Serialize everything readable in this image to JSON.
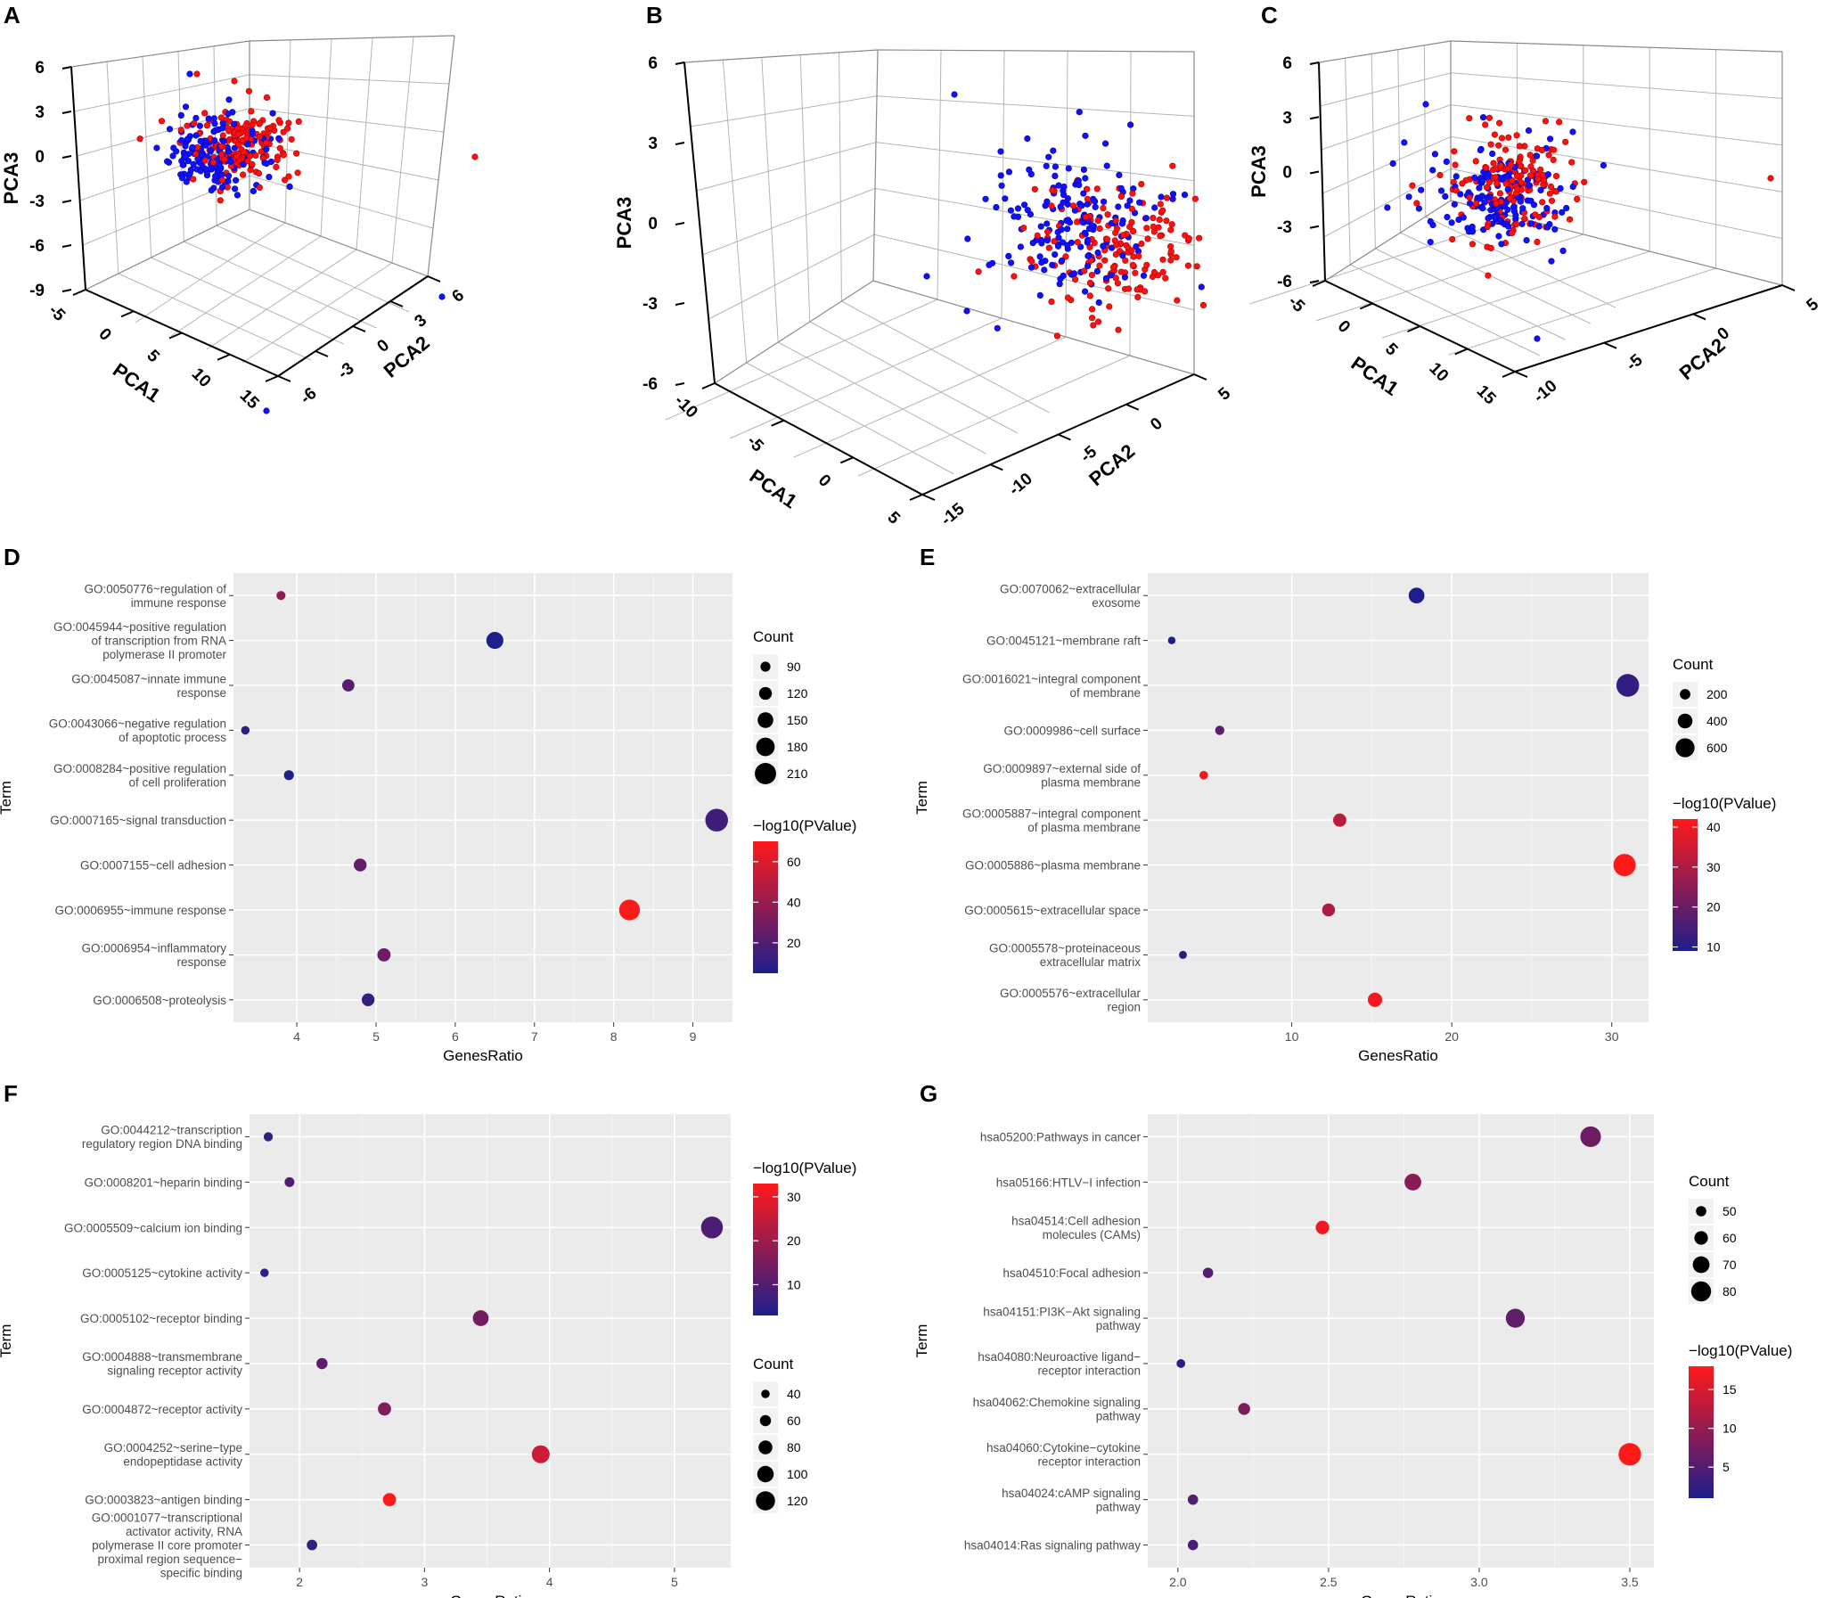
{
  "colors": {
    "low": "#1e1e8c",
    "high": "#ff1a1a",
    "panel_bg": "#ebebeb",
    "grid": "#ffffff",
    "pca_a": "#1010ff",
    "pca_b": "#ff1010"
  },
  "pca_panels": [
    {
      "letter": "A",
      "xlabel": "PCA1",
      "ylabel": "PCA2",
      "zlabel": "PCA3",
      "z_ticks": [
        "6",
        "3",
        "0",
        "-3",
        "-6",
        "-9"
      ],
      "x_ticks": [
        "-5",
        "0",
        "5",
        "10",
        "15"
      ],
      "y_ticks": [
        "-6",
        "-3",
        "0",
        "3",
        "6"
      ]
    },
    {
      "letter": "B",
      "xlabel": "PCA1",
      "ylabel": "PCA2",
      "zlabel": "PCA3",
      "z_ticks": [
        "6",
        "3",
        "0",
        "-3",
        "-6"
      ],
      "x_ticks": [
        "-10",
        "-5",
        "0",
        "5"
      ],
      "y_ticks": [
        "-15",
        "-10",
        "-5",
        "0",
        "5"
      ]
    },
    {
      "letter": "C",
      "xlabel": "PCA1",
      "ylabel": "PCA2",
      "zlabel": "PCA3",
      "z_ticks": [
        "6",
        "3",
        "0",
        "-3",
        "-6"
      ],
      "x_ticks": [
        "-5",
        "0",
        "5",
        "10",
        "15"
      ],
      "y_ticks": [
        "-10",
        "-5",
        "0",
        "5"
      ]
    }
  ],
  "chart_data": [
    {
      "letter": "D",
      "type": "scatter",
      "xlabel": "GenesRatio",
      "ylabel": "Term",
      "xlim": [
        3.2,
        9.5
      ],
      "xticks": [
        4,
        5,
        6,
        7,
        8,
        9
      ],
      "terms": [
        {
          "label": [
            "GO:0050776~regulation of",
            "immune response"
          ],
          "ratio": 3.8,
          "count": 80,
          "p": 38
        },
        {
          "label": [
            "GO:0045944~positive regulation",
            "of transcription from RNA",
            "polymerase II promoter"
          ],
          "ratio": 6.5,
          "count": 165,
          "p": 5
        },
        {
          "label": [
            "GO:0045087~innate immune",
            "response"
          ],
          "ratio": 4.65,
          "count": 115,
          "p": 22
        },
        {
          "label": [
            "GO:0043066~negative regulation",
            "of apoptotic process"
          ],
          "ratio": 3.35,
          "count": 75,
          "p": 8
        },
        {
          "label": [
            "GO:0008284~positive regulation",
            "of cell proliferation"
          ],
          "ratio": 3.9,
          "count": 90,
          "p": 5
        },
        {
          "label": [
            "GO:0007165~signal transduction"
          ],
          "ratio": 9.3,
          "count": 225,
          "p": 15
        },
        {
          "label": [
            "GO:0007155~cell adhesion"
          ],
          "ratio": 4.8,
          "count": 120,
          "p": 25
        },
        {
          "label": [
            "GO:0006955~immune response"
          ],
          "ratio": 8.2,
          "count": 205,
          "p": 70
        },
        {
          "label": [
            "GO:0006954~inflammatory",
            "response"
          ],
          "ratio": 5.1,
          "count": 125,
          "p": 28
        },
        {
          "label": [
            "GO:0006508~proteolysis"
          ],
          "ratio": 4.9,
          "count": 120,
          "p": 12
        }
      ],
      "legend_order": "count_first",
      "count_title": "Count",
      "count_vals": [
        90,
        120,
        150,
        180,
        210
      ],
      "count_range": [
        60,
        230
      ],
      "p_title": "−log10(PValue)",
      "p_ticks": [
        20,
        40,
        60
      ],
      "p_range": [
        5,
        70
      ]
    },
    {
      "letter": "E",
      "type": "scatter",
      "xlabel": "GenesRatio",
      "ylabel": "Term",
      "xlim": [
        1.0,
        32.3
      ],
      "xticks": [
        10,
        20,
        30
      ],
      "terms": [
        {
          "label": [
            "GO:0070062~extracellular",
            "exosome"
          ],
          "ratio": 17.8,
          "count": 450,
          "p": 6
        },
        {
          "label": [
            "GO:0045121~membrane raft"
          ],
          "ratio": 2.5,
          "count": 60,
          "p": 5
        },
        {
          "label": [
            "GO:0016021~integral component",
            "of membrane"
          ],
          "ratio": 31.0,
          "count": 780,
          "p": 12
        },
        {
          "label": [
            "GO:0009986~cell surface"
          ],
          "ratio": 5.5,
          "count": 140,
          "p": 18
        },
        {
          "label": [
            "GO:0009897~external side of",
            "plasma membrane"
          ],
          "ratio": 4.5,
          "count": 110,
          "p": 40
        },
        {
          "label": [
            "GO:0005887~integral component",
            "of plasma membrane"
          ],
          "ratio": 13.0,
          "count": 330,
          "p": 32
        },
        {
          "label": [
            "GO:0005886~plasma membrane"
          ],
          "ratio": 30.8,
          "count": 760,
          "p": 42
        },
        {
          "label": [
            "GO:0005615~extracellular space"
          ],
          "ratio": 12.3,
          "count": 310,
          "p": 30
        },
        {
          "label": [
            "GO:0005578~proteinaceous",
            "extracellular matrix"
          ],
          "ratio": 3.2,
          "count": 80,
          "p": 6
        },
        {
          "label": [
            "GO:0005576~extracellular",
            "region"
          ],
          "ratio": 15.2,
          "count": 380,
          "p": 40
        }
      ],
      "legend_order": "count_first",
      "count_title": "Count",
      "count_vals": [
        200,
        400,
        600
      ],
      "count_range": [
        40,
        800
      ],
      "p_title": "−log10(PValue)",
      "p_ticks": [
        10,
        20,
        30,
        40
      ],
      "p_range": [
        9,
        42
      ]
    },
    {
      "letter": "F",
      "type": "scatter",
      "xlabel": "GenesRatio",
      "ylabel": "Term",
      "xlim": [
        1.6,
        5.45
      ],
      "xticks": [
        2,
        3,
        4,
        5
      ],
      "terms": [
        {
          "label": [
            "GO:0044212~transcription",
            "regulatory region DNA binding"
          ],
          "ratio": 1.75,
          "count": 45,
          "p": 6
        },
        {
          "label": [
            "GO:0008201~heparin binding"
          ],
          "ratio": 1.92,
          "count": 50,
          "p": 10
        },
        {
          "label": [
            "GO:0005509~calcium ion binding"
          ],
          "ratio": 5.3,
          "count": 140,
          "p": 9
        },
        {
          "label": [
            "GO:0005125~cytokine activity"
          ],
          "ratio": 1.72,
          "count": 40,
          "p": 5
        },
        {
          "label": [
            "GO:0005102~receptor binding"
          ],
          "ratio": 3.45,
          "count": 95,
          "p": 14
        },
        {
          "label": [
            "GO:0004888~transmembrane",
            "signaling receptor activity"
          ],
          "ratio": 2.18,
          "count": 60,
          "p": 11
        },
        {
          "label": [
            "GO:0004872~receptor activity"
          ],
          "ratio": 2.68,
          "count": 75,
          "p": 16
        },
        {
          "label": [
            "GO:0004252~serine−type",
            "endopeptidase activity"
          ],
          "ratio": 3.93,
          "count": 110,
          "p": 26
        },
        {
          "label": [
            "GO:0003823~antigen binding"
          ],
          "ratio": 2.72,
          "count": 75,
          "p": 33
        },
        {
          "label": [
            "GO:0001077~transcriptional",
            "activator activity, RNA",
            "polymerase II core promoter",
            "proximal region sequence−",
            "specific binding"
          ],
          "ratio": 2.1,
          "count": 55,
          "p": 6
        }
      ],
      "legend_order": "p_first",
      "count_title": "Count",
      "count_vals": [
        40,
        60,
        80,
        100,
        120
      ],
      "count_range": [
        30,
        150
      ],
      "p_title": "−log10(PValue)",
      "p_ticks": [
        10,
        20,
        30
      ],
      "p_range": [
        3,
        33
      ]
    },
    {
      "letter": "G",
      "type": "scatter",
      "xlabel": "GenesRatio",
      "ylabel": "Term",
      "xlim": [
        1.9,
        3.58
      ],
      "xticks": [
        2.0,
        2.5,
        3.0,
        3.5
      ],
      "terms": [
        {
          "label": [
            "hsa05200:Pathways in cancer"
          ],
          "ratio": 3.37,
          "count": 82,
          "p": 7
        },
        {
          "label": [
            "hsa05166:HTLV−I infection"
          ],
          "ratio": 2.78,
          "count": 70,
          "p": 9
        },
        {
          "label": [
            "hsa04514:Cell adhesion",
            "molecules (CAMs)"
          ],
          "ratio": 2.48,
          "count": 60,
          "p": 17
        },
        {
          "label": [
            "hsa04510:Focal adhesion"
          ],
          "ratio": 2.1,
          "count": 50,
          "p": 5
        },
        {
          "label": [
            "hsa04151:PI3K−Akt signaling",
            "pathway"
          ],
          "ratio": 3.12,
          "count": 77,
          "p": 6
        },
        {
          "label": [
            "hsa04080:Neuroactive ligand−",
            "receptor interaction"
          ],
          "ratio": 2.01,
          "count": 45,
          "p": 2
        },
        {
          "label": [
            "hsa04062:Chemokine signaling",
            "pathway"
          ],
          "ratio": 2.22,
          "count": 55,
          "p": 8
        },
        {
          "label": [
            "hsa04060:Cytokine−cytokine",
            "receptor interaction"
          ],
          "ratio": 3.5,
          "count": 88,
          "p": 18
        },
        {
          "label": [
            "hsa04024:cAMP signaling",
            "pathway"
          ],
          "ratio": 2.05,
          "count": 50,
          "p": 5
        },
        {
          "label": [
            "hsa04014:Ras signaling pathway"
          ],
          "ratio": 2.05,
          "count": 50,
          "p": 4
        }
      ],
      "legend_order": "count_first",
      "count_title": "Count",
      "count_vals": [
        50,
        60,
        70,
        80
      ],
      "count_range": [
        40,
        90
      ],
      "p_title": "−log10(PValue)",
      "p_ticks": [
        5,
        10,
        15
      ],
      "p_range": [
        1,
        18
      ]
    }
  ]
}
